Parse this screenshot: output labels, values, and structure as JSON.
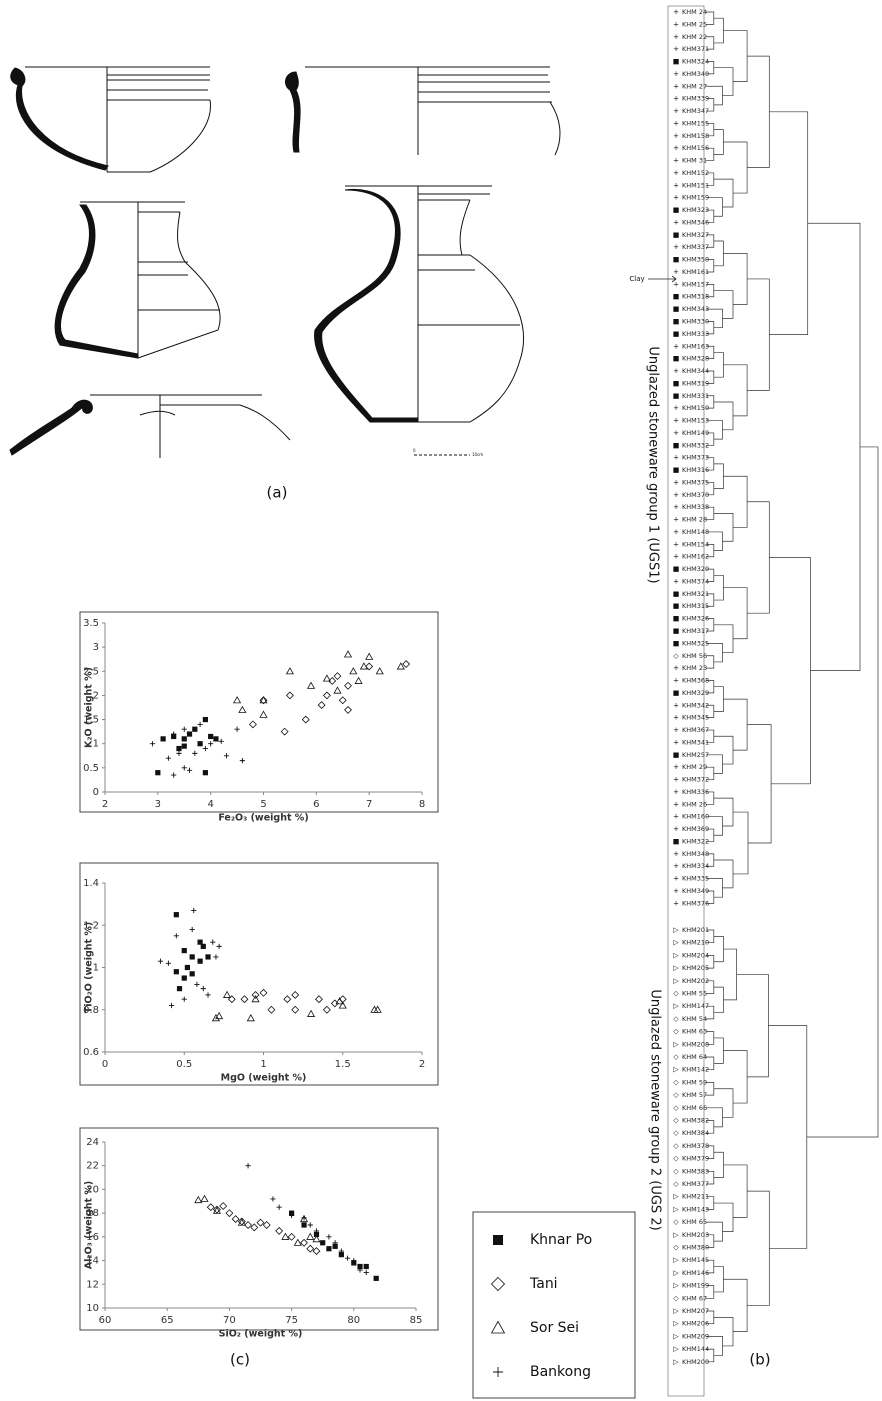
{
  "panel_labels": [
    "(a)",
    "(b)",
    "(c)"
  ],
  "scale_bar": {
    "start": "0",
    "end": "10cm"
  },
  "chart_data": [
    {
      "type": "scatter",
      "x_label": "Fe₂O₃ (weight %)",
      "y_label": "K₂O (weight %)",
      "xlim": [
        2,
        8
      ],
      "xticks": [
        2,
        3,
        4,
        5,
        6,
        7,
        8
      ],
      "ylim": [
        0,
        3.5
      ],
      "yticks": [
        0,
        0.5,
        1,
        1.5,
        2,
        2.5,
        3,
        3.5
      ],
      "series": [
        {
          "name": "Khnar Po",
          "marker": "square",
          "color": "#111111",
          "x": [
            3,
            3.1,
            3.3,
            3.5,
            3.6,
            3.5,
            3.8,
            3.9,
            4.0,
            4.1,
            3.9,
            3.4,
            3.7
          ],
          "values": [
            0.4,
            1.1,
            1.15,
            1.1,
            1.2,
            0.95,
            1.0,
            1.5,
            1.15,
            1.1,
            0.4,
            0.9,
            1.3
          ]
        },
        {
          "name": "Tani",
          "marker": "diamond",
          "color": "#111111",
          "x": [
            4.8,
            5,
            5.4,
            5.5,
            5.8,
            6.1,
            6.2,
            6.4,
            6.5,
            6.6,
            6.6,
            7.0,
            7.7,
            6.3
          ],
          "values": [
            1.4,
            1.9,
            1.25,
            2.0,
            1.5,
            1.8,
            2.0,
            2.4,
            1.9,
            1.7,
            2.2,
            2.6,
            2.65,
            2.3
          ]
        },
        {
          "name": "Sor Sei",
          "marker": "triangle",
          "color": "#111111",
          "x": [
            4.5,
            4.6,
            5.0,
            5.0,
            5.5,
            5.9,
            6.2,
            6.4,
            6.6,
            6.7,
            6.9,
            7.0,
            7.2,
            7.6,
            6.8
          ],
          "values": [
            1.9,
            1.7,
            1.9,
            1.6,
            2.5,
            2.2,
            2.35,
            2.1,
            2.85,
            2.5,
            2.6,
            2.8,
            2.5,
            2.6,
            2.3
          ]
        },
        {
          "name": "Bankong",
          "marker": "plus",
          "color": "#111111",
          "x": [
            2.9,
            3.2,
            3.3,
            3.4,
            3.5,
            3.6,
            3.7,
            3.8,
            4.0,
            4.2,
            4.5,
            4.6,
            4.3,
            3.3,
            3.9,
            3.5
          ],
          "values": [
            1.0,
            0.7,
            0.35,
            0.8,
            0.5,
            0.45,
            0.8,
            1.4,
            1.0,
            1.05,
            1.3,
            0.65,
            0.75,
            1.2,
            0.9,
            1.3
          ]
        }
      ]
    },
    {
      "type": "scatter",
      "x_label": "MgO (weight %)",
      "y_label": "TiO₂O (weight %)",
      "xlim": [
        0,
        2
      ],
      "xticks": [
        0,
        0.5,
        1,
        1.5,
        2
      ],
      "ylim": [
        0.6,
        1.4
      ],
      "yticks": [
        0.6,
        0.8,
        1,
        1.2,
        1.4
      ],
      "series": [
        {
          "marker": "square",
          "color": "#111111",
          "x": [
            0.45,
            0.47,
            0.45,
            0.5,
            0.52,
            0.55,
            0.55,
            0.6,
            0.6,
            0.62,
            0.65,
            0.5
          ],
          "values": [
            1.25,
            0.9,
            0.98,
            0.95,
            1.0,
            1.05,
            0.97,
            1.12,
            1.03,
            1.1,
            1.05,
            1.08
          ]
        },
        {
          "marker": "diamond",
          "color": "#111111",
          "x": [
            0.8,
            0.88,
            0.95,
            1.0,
            1.05,
            1.15,
            1.2,
            1.2,
            1.35,
            1.45,
            1.5,
            1.4
          ],
          "values": [
            0.85,
            0.85,
            0.87,
            0.88,
            0.8,
            0.85,
            0.8,
            0.87,
            0.85,
            0.83,
            0.85,
            0.8
          ]
        },
        {
          "marker": "triangle",
          "color": "#111111",
          "x": [
            0.7,
            0.72,
            0.77,
            0.92,
            0.95,
            1.3,
            1.48,
            1.5,
            1.7,
            1.72
          ],
          "values": [
            0.76,
            0.77,
            0.87,
            0.76,
            0.85,
            0.78,
            0.84,
            0.82,
            0.8,
            0.8
          ]
        },
        {
          "marker": "plus",
          "color": "#111111",
          "x": [
            0.35,
            0.4,
            0.42,
            0.45,
            0.5,
            0.55,
            0.56,
            0.58,
            0.62,
            0.65,
            0.68,
            0.7,
            0.72,
            0.5
          ],
          "values": [
            1.03,
            1.02,
            0.82,
            1.15,
            0.85,
            1.18,
            1.27,
            0.92,
            0.9,
            0.87,
            1.12,
            1.05,
            1.1,
            0.95
          ]
        }
      ]
    },
    {
      "type": "scatter",
      "x_label": "SiO₂ (weight %)",
      "y_label": "Al₂O₃ (weight %)",
      "xlim": [
        60,
        85
      ],
      "xticks": [
        60,
        65,
        70,
        75,
        80,
        85
      ],
      "ylim": [
        10,
        24
      ],
      "yticks": [
        10,
        12,
        14,
        16,
        18,
        20,
        22,
        24
      ],
      "series": [
        {
          "marker": "square",
          "color": "#111111",
          "x": [
            75,
            76,
            77,
            77.5,
            78,
            78.5,
            79,
            80,
            80.5,
            81,
            81.8
          ],
          "values": [
            18,
            17,
            16.2,
            15.5,
            15,
            15.2,
            14.5,
            13.8,
            13.5,
            13.5,
            12.5
          ]
        },
        {
          "marker": "diamond",
          "color": "#111111",
          "x": [
            68.5,
            69,
            69.5,
            70,
            70.5,
            71,
            71.5,
            72,
            72.5,
            73,
            74,
            75,
            76,
            76.5,
            77
          ],
          "values": [
            18.5,
            18.3,
            18.6,
            18,
            17.5,
            17.3,
            17,
            16.8,
            17.2,
            17,
            16.5,
            16,
            15.5,
            15,
            14.8
          ]
        },
        {
          "marker": "triangle",
          "color": "#111111",
          "x": [
            67.5,
            68,
            69,
            71,
            74.5,
            75.5,
            76,
            76.5,
            77
          ],
          "values": [
            19.1,
            19.2,
            18.2,
            17.2,
            16,
            15.5,
            17.5,
            16,
            15.8
          ]
        },
        {
          "marker": "plus",
          "color": "#111111",
          "x": [
            71.5,
            73.5,
            74,
            75,
            76,
            77,
            78,
            78.5,
            79,
            79.5,
            80,
            80.5,
            81,
            76.5
          ],
          "values": [
            22,
            19.2,
            18.5,
            17.8,
            17.6,
            16.5,
            16,
            15.5,
            14.8,
            14.2,
            14,
            13.2,
            13,
            17
          ]
        }
      ]
    }
  ],
  "dendrogram": {
    "clay_label": "Clay",
    "groups": [
      {
        "label": "Unglazed stoneware group 1 (UGS1)",
        "leaves": [
          {
            "symbol": "+",
            "label": "KHM 24"
          },
          {
            "symbol": "+",
            "label": "KHM 25"
          },
          {
            "symbol": "+",
            "label": "KHM 22"
          },
          {
            "symbol": "+",
            "label": "KHM371"
          },
          {
            "symbol": "■",
            "label": "KHM324"
          },
          {
            "symbol": "+",
            "label": "KHM340"
          },
          {
            "symbol": "+",
            "label": "KHM 27"
          },
          {
            "symbol": "+",
            "label": "KHM339"
          },
          {
            "symbol": "+",
            "label": "KHM347"
          },
          {
            "symbol": "+",
            "label": "KHM155"
          },
          {
            "symbol": "+",
            "label": "KHM158"
          },
          {
            "symbol": "+",
            "label": "KHM156"
          },
          {
            "symbol": "+",
            "label": "KHM 31"
          },
          {
            "symbol": "+",
            "label": "KHM152"
          },
          {
            "symbol": "+",
            "label": "KHM151"
          },
          {
            "symbol": "+",
            "label": "KHM159"
          },
          {
            "symbol": "■",
            "label": "KHM323"
          },
          {
            "symbol": "+",
            "label": "KHM346"
          },
          {
            "symbol": "■",
            "label": "KHM327"
          },
          {
            "symbol": "+",
            "label": "KHM337"
          },
          {
            "symbol": "■",
            "label": "KHM350"
          },
          {
            "symbol": "+",
            "label": "KHM161"
          },
          {
            "symbol": "+",
            "label": "KHM157"
          },
          {
            "symbol": "■",
            "label": "KHM318"
          },
          {
            "symbol": "■",
            "label": "KHM343"
          },
          {
            "symbol": "■",
            "label": "KHM330"
          },
          {
            "symbol": "■",
            "label": "KHM333"
          },
          {
            "symbol": "+",
            "label": "KHM163"
          },
          {
            "symbol": "■",
            "label": "KHM328"
          },
          {
            "symbol": "+",
            "label": "KHM344"
          },
          {
            "symbol": "■",
            "label": "KHM319"
          },
          {
            "symbol": "■",
            "label": "KHM331"
          },
          {
            "symbol": "+",
            "label": "KHM150"
          },
          {
            "symbol": "+",
            "label": "KHM153"
          },
          {
            "symbol": "+",
            "label": "KHM149"
          },
          {
            "symbol": "■",
            "label": "KHM332"
          },
          {
            "symbol": "+",
            "label": "KHM373"
          },
          {
            "symbol": "■",
            "label": "KHM316"
          },
          {
            "symbol": "+",
            "label": "KHM375"
          },
          {
            "symbol": "+",
            "label": "KHM370"
          },
          {
            "symbol": "+",
            "label": "KHM338"
          },
          {
            "symbol": "+",
            "label": "KHM 28"
          },
          {
            "symbol": "+",
            "label": "KHM148"
          },
          {
            "symbol": "+",
            "label": "KHM154"
          },
          {
            "symbol": "+",
            "label": "KHM162"
          },
          {
            "symbol": "■",
            "label": "KHM320"
          },
          {
            "symbol": "+",
            "label": "KHM374"
          },
          {
            "symbol": "■",
            "label": "KHM321"
          },
          {
            "symbol": "■",
            "label": "KHM315"
          },
          {
            "symbol": "■",
            "label": "KHM326"
          },
          {
            "symbol": "■",
            "label": "KHM317"
          },
          {
            "symbol": "■",
            "label": "KHM325"
          },
          {
            "symbol": "◇",
            "label": "KHM 56"
          },
          {
            "symbol": "+",
            "label": "KHM 23"
          },
          {
            "symbol": "+",
            "label": "KHM368"
          },
          {
            "symbol": "■",
            "label": "KHM329"
          },
          {
            "symbol": "+",
            "label": "KHM342"
          },
          {
            "symbol": "+",
            "label": "KHM345"
          },
          {
            "symbol": "+",
            "label": "KHM367"
          },
          {
            "symbol": "+",
            "label": "KHM341"
          },
          {
            "symbol": "■",
            "label": "KHM257"
          },
          {
            "symbol": "+",
            "label": "KHM 29"
          },
          {
            "symbol": "+",
            "label": "KHM372"
          },
          {
            "symbol": "+",
            "label": "KHM336"
          },
          {
            "symbol": "+",
            "label": "KHM 26"
          },
          {
            "symbol": "+",
            "label": "KHM160"
          },
          {
            "symbol": "+",
            "label": "KHM369"
          },
          {
            "symbol": "■",
            "label": "KHM322"
          },
          {
            "symbol": "+",
            "label": "KHM348"
          },
          {
            "symbol": "+",
            "label": "KHM334"
          },
          {
            "symbol": "+",
            "label": "KHM335"
          },
          {
            "symbol": "+",
            "label": "KHM349"
          },
          {
            "symbol": "+",
            "label": "KHM376"
          }
        ]
      },
      {
        "label": "Unglazed stoneware group 2 (UGS 2)",
        "leaves": [
          {
            "symbol": "▷",
            "label": "KHM201"
          },
          {
            "symbol": "▷",
            "label": "KHM210"
          },
          {
            "symbol": "▷",
            "label": "KHM204"
          },
          {
            "symbol": "▷",
            "label": "KHM205"
          },
          {
            "symbol": "▷",
            "label": "KHM202"
          },
          {
            "symbol": "◇",
            "label": "KHM 55"
          },
          {
            "symbol": "▷",
            "label": "KHM147"
          },
          {
            "symbol": "◇",
            "label": "KHM 54"
          },
          {
            "symbol": "◇",
            "label": "KHM 63"
          },
          {
            "symbol": "▷",
            "label": "KHM208"
          },
          {
            "symbol": "◇",
            "label": "KHM 64"
          },
          {
            "symbol": "▷",
            "label": "KHM142"
          },
          {
            "symbol": "◇",
            "label": "KHM 59"
          },
          {
            "symbol": "◇",
            "label": "KHM 57"
          },
          {
            "symbol": "◇",
            "label": "KHM 66"
          },
          {
            "symbol": "◇",
            "label": "KHM382"
          },
          {
            "symbol": "◇",
            "label": "KHM384"
          },
          {
            "symbol": "◇",
            "label": "KHM378"
          },
          {
            "symbol": "◇",
            "label": "KHM379"
          },
          {
            "symbol": "◇",
            "label": "KHM383"
          },
          {
            "symbol": "◇",
            "label": "KHM377"
          },
          {
            "symbol": "▷",
            "label": "KHM211"
          },
          {
            "symbol": "▷",
            "label": "KHM143"
          },
          {
            "symbol": "◇",
            "label": "KHM 65"
          },
          {
            "symbol": "▷",
            "label": "KHM203"
          },
          {
            "symbol": "◇",
            "label": "KHM380"
          },
          {
            "symbol": "▷",
            "label": "KHM145"
          },
          {
            "symbol": "▷",
            "label": "KHM146"
          },
          {
            "symbol": "▷",
            "label": "KHM199"
          },
          {
            "symbol": "◇",
            "label": "KHM 67"
          },
          {
            "symbol": "▷",
            "label": "KHM207"
          },
          {
            "symbol": "▷",
            "label": "KHM206"
          },
          {
            "symbol": "▷",
            "label": "KHM209"
          },
          {
            "symbol": "▷",
            "label": "KHM144"
          },
          {
            "symbol": "▷",
            "label": "KHM200"
          }
        ]
      }
    ]
  }
}
